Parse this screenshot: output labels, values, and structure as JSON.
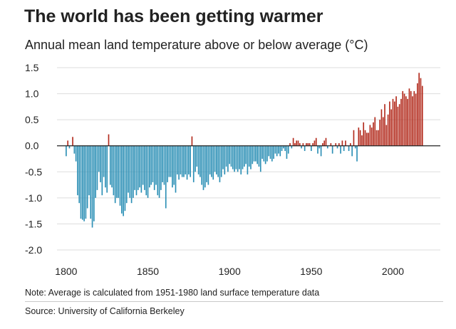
{
  "header": {
    "title": "The world has been getting warmer",
    "subtitle": "Annual mean land temperature above or below average (°C)"
  },
  "footer": {
    "note": "Note: Average is calculated from 1951-1980 land surface temperature data",
    "source": "Source: University of California Berkeley"
  },
  "colors": {
    "positive": "#b22a1c",
    "negative": "#2b8fb5",
    "zero_line": "#222222",
    "grid": "#dddddd"
  },
  "chart_data": {
    "type": "bar",
    "title": "The world has been getting warmer",
    "subtitle": "Annual mean land temperature above or below average (°C)",
    "xlabel": "",
    "ylabel": "",
    "xlim": [
      1797,
      2029
    ],
    "ylim": [
      -2.0,
      1.5
    ],
    "yticks": [
      1.5,
      1.0,
      0.5,
      0.0,
      -0.5,
      -1.0,
      -1.5,
      -2.0
    ],
    "ytick_labels": [
      "1.5",
      "1.0",
      "0.5",
      "0.0",
      "-0.5",
      "-1.0",
      "-1.5",
      "-2.0"
    ],
    "xticks": [
      1800,
      1850,
      1900,
      1950,
      2000
    ],
    "xtick_labels": [
      "1800",
      "1850",
      "1900",
      "1950",
      "2000"
    ],
    "grid": true,
    "start_year": 1800,
    "values": [
      -0.2,
      0.1,
      -0.05,
      0.0,
      0.17,
      -0.15,
      -0.3,
      -0.95,
      -1.1,
      -1.4,
      -1.42,
      -1.45,
      -1.4,
      -1.2,
      -0.95,
      -1.4,
      -1.57,
      -1.45,
      -1.0,
      -0.85,
      -0.5,
      -0.7,
      -0.95,
      -0.6,
      -0.8,
      -0.9,
      0.22,
      -0.75,
      -0.8,
      -0.95,
      -1.1,
      -1.0,
      -1.0,
      -1.15,
      -1.3,
      -1.35,
      -1.25,
      -1.1,
      -0.9,
      -1.0,
      -1.1,
      -1.0,
      -0.85,
      -0.95,
      -0.85,
      -0.8,
      -0.9,
      -0.75,
      -0.85,
      -0.95,
      -1.0,
      -0.8,
      -0.75,
      -0.7,
      -0.85,
      -0.75,
      -0.95,
      -1.0,
      -0.85,
      -0.7,
      -0.75,
      -1.2,
      -0.7,
      -0.6,
      -0.6,
      -0.8,
      -0.75,
      -0.9,
      -0.55,
      -0.65,
      -0.55,
      -0.6,
      -0.6,
      -0.55,
      -0.65,
      -0.55,
      -0.6,
      0.18,
      -0.7,
      -0.5,
      -0.4,
      -0.55,
      -0.6,
      -0.75,
      -0.85,
      -0.8,
      -0.7,
      -0.75,
      -0.55,
      -0.6,
      -0.65,
      -0.5,
      -0.55,
      -0.6,
      -0.7,
      -0.6,
      -0.45,
      -0.55,
      -0.4,
      -0.5,
      -0.35,
      -0.4,
      -0.45,
      -0.5,
      -0.45,
      -0.5,
      -0.45,
      -0.55,
      -0.45,
      -0.4,
      -0.35,
      -0.55,
      -0.4,
      -0.45,
      -0.35,
      -0.3,
      -0.3,
      -0.35,
      -0.4,
      -0.5,
      -0.25,
      -0.3,
      -0.35,
      -0.3,
      -0.2,
      -0.25,
      -0.3,
      -0.25,
      -0.15,
      -0.2,
      -0.15,
      -0.2,
      -0.1,
      -0.05,
      -0.1,
      -0.25,
      -0.15,
      0.05,
      -0.05,
      0.15,
      0.05,
      0.1,
      0.1,
      0.05,
      -0.05,
      0.05,
      -0.1,
      0.05,
      0.05,
      0.05,
      -0.1,
      0.05,
      0.1,
      0.15,
      -0.15,
      -0.05,
      -0.2,
      0.05,
      0.1,
      0.15,
      -0.05,
      0.0,
      0.05,
      -0.15,
      0.0,
      0.05,
      -0.05,
      0.05,
      -0.15,
      0.1,
      -0.1,
      0.1,
      0.0,
      -0.1,
      0.05,
      -0.2,
      0.3,
      -0.05,
      -0.3,
      0.35,
      0.3,
      0.2,
      0.45,
      0.3,
      0.25,
      0.25,
      0.4,
      0.35,
      0.45,
      0.55,
      0.3,
      0.3,
      0.5,
      0.7,
      0.55,
      0.8,
      0.4,
      0.6,
      0.85,
      0.7,
      0.9,
      0.85,
      0.95,
      0.75,
      0.8,
      0.9,
      1.05,
      1.0,
      0.95,
      0.9,
      1.1,
      1.05,
      0.95,
      1.05,
      1.0,
      1.2,
      1.4,
      1.3,
      1.15
    ]
  }
}
